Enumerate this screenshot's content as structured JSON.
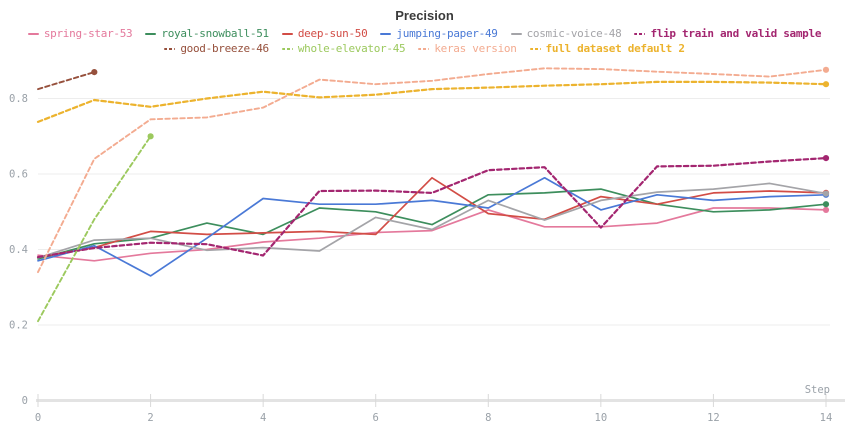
{
  "title": "Precision",
  "chart_data": {
    "type": "line",
    "title": "Precision",
    "xlabel": "Step",
    "ylabel": "",
    "x": [
      0,
      1,
      2,
      3,
      4,
      5,
      6,
      7,
      8,
      9,
      10,
      11,
      12,
      13,
      14
    ],
    "x_ticks": [
      0,
      2,
      4,
      6,
      8,
      10,
      12,
      14
    ],
    "y_ticks": [
      0,
      0.2,
      0.4,
      0.6,
      0.8
    ],
    "xlim": [
      0,
      14
    ],
    "ylim": [
      0,
      1
    ],
    "grid": true,
    "legend_position": "top",
    "series": [
      {
        "name": "spring-star-53",
        "color": "#e4799c",
        "style": "solid",
        "bold": false,
        "legend_row": 1,
        "values": [
          0.385,
          0.37,
          0.39,
          0.4,
          0.42,
          0.43,
          0.445,
          0.45,
          0.505,
          0.46,
          0.46,
          0.47,
          0.51,
          0.51,
          0.505
        ]
      },
      {
        "name": "royal-snowball-51",
        "color": "#3d8e5d",
        "style": "solid",
        "bold": false,
        "legend_row": 1,
        "values": [
          0.375,
          0.415,
          0.43,
          0.47,
          0.44,
          0.51,
          0.5,
          0.466,
          0.545,
          0.55,
          0.56,
          0.52,
          0.5,
          0.505,
          0.52
        ]
      },
      {
        "name": "deep-sun-50",
        "color": "#d24d46",
        "style": "solid",
        "bold": false,
        "legend_row": 1,
        "values": [
          0.38,
          0.405,
          0.448,
          0.44,
          0.444,
          0.448,
          0.44,
          0.59,
          0.495,
          0.48,
          0.54,
          0.52,
          0.55,
          0.555,
          0.55
        ]
      },
      {
        "name": "jumping-paper-49",
        "color": "#4a79d6",
        "style": "solid",
        "bold": false,
        "legend_row": 1,
        "values": [
          0.37,
          0.41,
          0.33,
          0.43,
          0.535,
          0.52,
          0.52,
          0.53,
          0.51,
          0.59,
          0.505,
          0.545,
          0.53,
          0.54,
          0.545
        ]
      },
      {
        "name": "cosmic-voice-48",
        "color": "#a4a4a8",
        "style": "solid",
        "bold": false,
        "legend_row": 1,
        "values": [
          0.378,
          0.425,
          0.43,
          0.398,
          0.405,
          0.396,
          0.485,
          0.453,
          0.53,
          0.478,
          0.53,
          0.552,
          0.56,
          0.575,
          0.548
        ]
      },
      {
        "name": "flip train and valid sample",
        "color": "#a32670",
        "style": "dashed",
        "bold": true,
        "legend_row": 1,
        "values": [
          0.38,
          0.404,
          0.418,
          0.414,
          0.384,
          0.555,
          0.556,
          0.55,
          0.61,
          0.618,
          0.458,
          0.62,
          0.622,
          0.633,
          0.642
        ]
      },
      {
        "name": "good-breeze-46",
        "color": "#96503c",
        "style": "dashed",
        "bold": false,
        "legend_row": 2,
        "values": [
          0.825,
          0.87
        ]
      },
      {
        "name": "whole-elevator-45",
        "color": "#9cc95e",
        "style": "dashed",
        "bold": false,
        "legend_row": 2,
        "values": [
          0.21,
          0.48,
          0.7
        ]
      },
      {
        "name": "keras version",
        "color": "#f3ab90",
        "style": "dashed",
        "bold": false,
        "legend_row": 2,
        "values": [
          0.34,
          0.64,
          0.745,
          0.75,
          0.776,
          0.85,
          0.838,
          0.847,
          0.865,
          0.88,
          0.878,
          0.871,
          0.865,
          0.858,
          0.876
        ]
      },
      {
        "name": "full dataset default 2",
        "color": "#ecb32e",
        "style": "dashed",
        "bold": true,
        "legend_row": 2,
        "values": [
          0.738,
          0.796,
          0.778,
          0.8,
          0.818,
          0.803,
          0.81,
          0.825,
          0.829,
          0.834,
          0.838,
          0.844,
          0.844,
          0.842,
          0.838
        ]
      }
    ]
  },
  "colors": {
    "grid": "#ededed",
    "axis_bar": "#e3e3e3",
    "tick_line": "#d9d9d9",
    "tick_text": "#9aa1a8",
    "title_text": "#3b3b3b"
  }
}
